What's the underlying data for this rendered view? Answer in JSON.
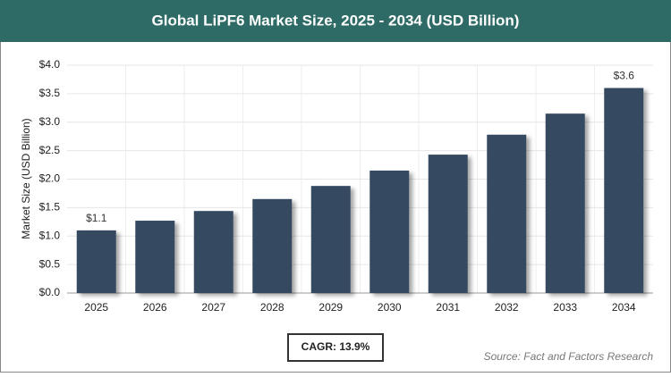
{
  "chart_data": {
    "type": "bar",
    "title": "Global LiPF6 Market Size, 2025 - 2034 (USD Billion)",
    "y_label": "Market Size (USD Billion)",
    "categories": [
      "2025",
      "2026",
      "2027",
      "2028",
      "2029",
      "2030",
      "2031",
      "2032",
      "2033",
      "2034"
    ],
    "values": [
      1.1,
      1.27,
      1.44,
      1.65,
      1.88,
      2.15,
      2.43,
      2.78,
      3.15,
      3.6
    ],
    "value_labels": [
      "$1.1",
      null,
      null,
      null,
      null,
      null,
      null,
      null,
      null,
      "$3.6"
    ],
    "color": "#364a60",
    "ylim": [
      0,
      4
    ],
    "yticks": [
      {
        "value": 0,
        "label": "$0.0"
      },
      {
        "value": 0.5,
        "label": "$0.5"
      },
      {
        "value": 1,
        "label": "$1.0"
      },
      {
        "value": 1.5,
        "label": "$1.5"
      },
      {
        "value": 2,
        "label": "$2.0"
      },
      {
        "value": 2.5,
        "label": "$2.5"
      },
      {
        "value": 3,
        "label": "$3.0"
      },
      {
        "value": 3.5,
        "label": "$3.5"
      },
      {
        "value": 4,
        "label": "$4.0"
      }
    ],
    "grid": true,
    "cagr": "CAGR: 13.9%",
    "source": "Source: Fact and Factors Research"
  }
}
